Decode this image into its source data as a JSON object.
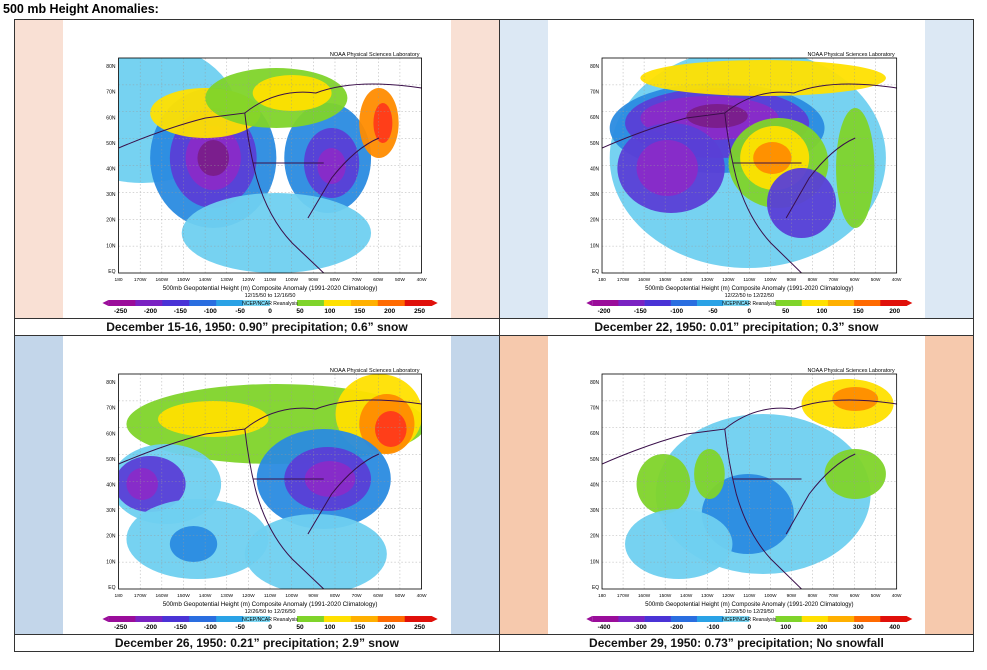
{
  "heading": "500 mb Height Anomalies:",
  "map_common": {
    "credit": "NOAA Physical Sciences Laboratory",
    "subtitle": "500mb Geopotential Height (m) Composite Anomaly (1991-2020 Climatology)",
    "reanalysis": "NCEP/NCAR Reanalysis",
    "lat_labels": [
      "80N",
      "70N",
      "60N",
      "50N",
      "40N",
      "30N",
      "20N",
      "10N",
      "EQ"
    ],
    "lon_labels": [
      "180",
      "170W",
      "160W",
      "150W",
      "140W",
      "130W",
      "120W",
      "110W",
      "100W",
      "90W",
      "80W",
      "70W",
      "60W",
      "50W",
      "40W"
    ]
  },
  "panels": [
    {
      "caption": "December 15-16, 1950: 0.90” precipitation; 0.6” snow",
      "dates": "12/15/50  to  12/16/50",
      "colorbar": [
        "-250",
        "-200",
        "-150",
        "-100",
        "-50",
        "0",
        "50",
        "100",
        "150",
        "200",
        "250"
      ],
      "side_color": "#f9e0d4"
    },
    {
      "caption": "December 22, 1950: 0.01” precipitation; 0.3” snow",
      "dates": "12/22/50  to  12/22/50",
      "colorbar": [
        "-200",
        "-150",
        "-100",
        "-50",
        "0",
        "50",
        "100",
        "150",
        "200"
      ],
      "side_color": "#dce8f4"
    },
    {
      "caption": "December 26, 1950: 0.21” precipitation; 2.9” snow",
      "dates": "12/26/50  to  12/26/50",
      "colorbar": [
        "-250",
        "-200",
        "-150",
        "-100",
        "-50",
        "0",
        "50",
        "100",
        "150",
        "200",
        "250"
      ],
      "side_color": "#c3d6ea"
    },
    {
      "caption": "December 29, 1950: 0.73” precipitation; No snowfall",
      "dates": "12/29/50  to  12/29/50",
      "colorbar": [
        "-400",
        "-300",
        "-200",
        "-100",
        "0",
        "100",
        "200",
        "300",
        "400"
      ],
      "side_color": "#f6c9ad"
    }
  ]
}
